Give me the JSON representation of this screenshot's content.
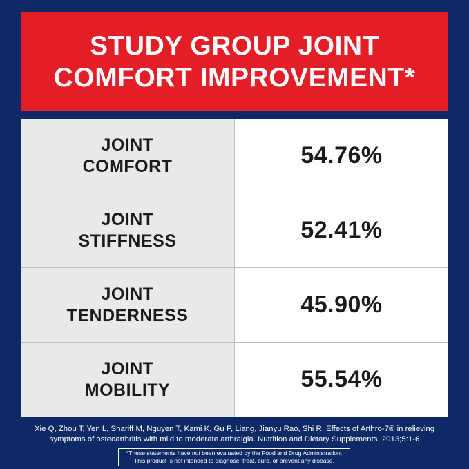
{
  "header": {
    "title_line1": "STUDY GROUP JOINT",
    "title_line2": "COMFORT IMPROVEMENT*"
  },
  "rows": [
    {
      "label_line1": "JOINT",
      "label_line2": "COMFORT",
      "value": "54.76%"
    },
    {
      "label_line1": "JOINT",
      "label_line2": "STIFFNESS",
      "value": "52.41%"
    },
    {
      "label_line1": "JOINT",
      "label_line2": "TENDERNESS",
      "value": "45.90%"
    },
    {
      "label_line1": "JOINT",
      "label_line2": "MOBILITY",
      "value": "55.54%"
    }
  ],
  "citation": {
    "line1": "Xie Q, Zhou T, Yen L, Shariff M, Nguyen T, Kami K, Gu P, Liang, Jianyu Rao, Shi R. Effects of Arthro-7® in relieving",
    "line2": "symptoms of osteoarthritis with mild to moderate arthralgia. Nutrition and Dietary Supplements. 2013;5:1-6"
  },
  "disclaimer": {
    "line1": "*These statements have not been evaluated by the Food and Drug Administration.",
    "line2": "This product is not intended to diagnose, treat, cure, or prevent any disease."
  },
  "colors": {
    "background": "#0e2a66",
    "header": "#e41e26",
    "label_cell": "#e9e9e9",
    "value_cell": "#ffffff"
  }
}
